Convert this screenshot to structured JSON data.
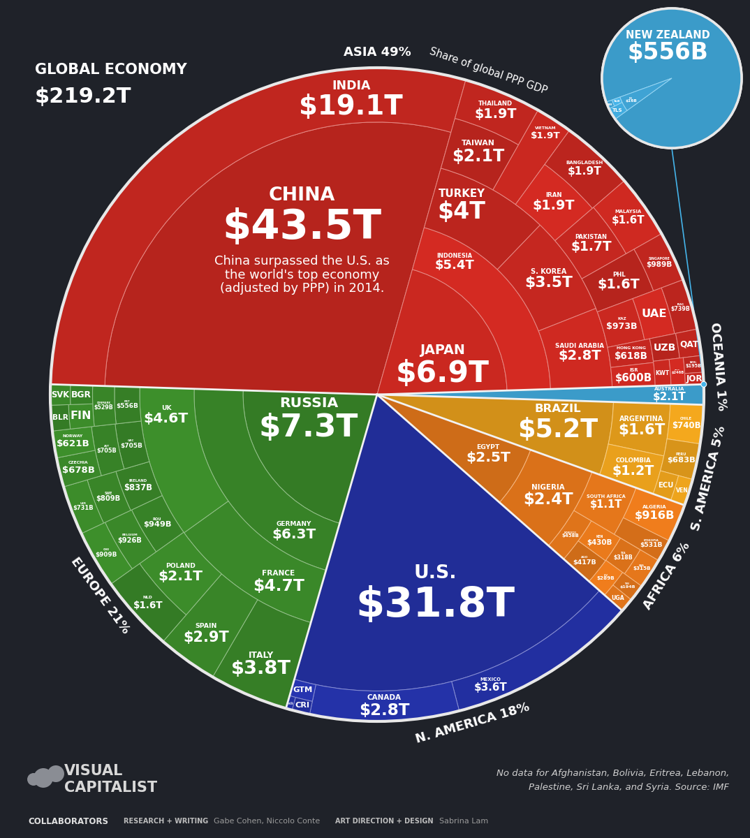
{
  "chart_data": {
    "type": "treemap",
    "title": "GLOBAL ECONOMY",
    "total_label": "$219.2T",
    "subtitle": "Share of global PPP GDP",
    "data_labels": true,
    "regions": [
      {
        "name": "ASIA",
        "share": 49,
        "share_label": "49%",
        "color": "#d42a22",
        "items": [
          {
            "name": "CHINA",
            "value": 43500,
            "value_label": "$43.5T",
            "note": "China surpassed the U.S. as the world's top economy (adjusted by PPP) in 2014."
          },
          {
            "name": "INDIA",
            "value": 19100,
            "value_label": "$19.1T"
          },
          {
            "name": "JAPAN",
            "value": 6900,
            "value_label": "$6.9T"
          },
          {
            "name": "INDONESIA",
            "value": 5400,
            "value_label": "$5.4T"
          },
          {
            "name": "TURKEY",
            "value": 4000,
            "value_label": "$4T"
          },
          {
            "name": "S. KOREA",
            "value": 3500,
            "value_label": "$3.5T"
          },
          {
            "name": "SAUDI ARABIA",
            "value": 2800,
            "value_label": "$2.8T"
          },
          {
            "name": "TAIWAN",
            "value": 2100,
            "value_label": "$2.1T"
          },
          {
            "name": "THAILAND",
            "value": 1900,
            "value_label": "$1.9T"
          },
          {
            "name": "VIETNAM",
            "value": 1900,
            "value_label": "$1.9T"
          },
          {
            "name": "IRAN",
            "value": 1900,
            "value_label": "$1.9T"
          },
          {
            "name": "BANGLADESH",
            "value": 1900,
            "value_label": "$1.9T"
          },
          {
            "name": "PAKISTAN",
            "value": 1700,
            "value_label": "$1.7T"
          },
          {
            "name": "MALAYSIA",
            "value": 1600,
            "value_label": "$1.6T"
          },
          {
            "name": "PHL",
            "value": 1600,
            "value_label": "$1.6T"
          },
          {
            "name": "SINGAPORE",
            "value": 989,
            "value_label": "$989B"
          },
          {
            "name": "KAZ",
            "value": 973,
            "value_label": "$973B"
          },
          {
            "name": "UAE",
            "value": 900
          },
          {
            "name": "IRAQ",
            "value": 739,
            "value_label": "$739B"
          },
          {
            "name": "HONG KONG",
            "value": 618,
            "value_label": "$618B"
          },
          {
            "name": "ISR",
            "value": 600,
            "value_label": "$600B"
          },
          {
            "name": "UZB",
            "value": 410
          },
          {
            "name": "QAT",
            "value": 370
          },
          {
            "name": "KWT",
            "value": 260
          },
          {
            "name": "OMAN",
            "value": 246,
            "value_label": "$246B"
          },
          {
            "name": "NEPAL",
            "value": 195,
            "value_label": "$195B"
          },
          {
            "name": "JOR",
            "value": 140
          }
        ]
      },
      {
        "name": "EUROPE",
        "share": 21,
        "share_label": "21%",
        "color": "#3d8f2b",
        "items": [
          {
            "name": "RUSSIA",
            "value": 7300,
            "value_label": "$7.3T"
          },
          {
            "name": "GERMANY",
            "value": 6300,
            "value_label": "$6.3T"
          },
          {
            "name": "FRANCE",
            "value": 4700,
            "value_label": "$4.7T"
          },
          {
            "name": "UK",
            "value": 4600,
            "value_label": "$4.6T"
          },
          {
            "name": "ITALY",
            "value": 3800,
            "value_label": "$3.8T"
          },
          {
            "name": "SPAIN",
            "value": 2900,
            "value_label": "$2.9T"
          },
          {
            "name": "POLAND",
            "value": 2100,
            "value_label": "$2.1T"
          },
          {
            "name": "NLD",
            "value": 1600,
            "value_label": "$1.6T"
          },
          {
            "name": "ROU",
            "value": 949,
            "value_label": "$949B"
          },
          {
            "name": "BELGIUM",
            "value": 926,
            "value_label": "$926B"
          },
          {
            "name": "CHE",
            "value": 909,
            "value_label": "$909B"
          },
          {
            "name": "IRELAND",
            "value": 837,
            "value_label": "$837B"
          },
          {
            "name": "SWE",
            "value": 809,
            "value_label": "$809B"
          },
          {
            "name": "UKR",
            "value": 731,
            "value_label": "$731B"
          },
          {
            "name": "GRC",
            "value": 705,
            "value_label": "$705B"
          },
          {
            "name": "AUT",
            "value": 705,
            "value_label": "$705B"
          },
          {
            "name": "CZECHIA",
            "value": 678,
            "value_label": "$678B"
          },
          {
            "name": "NORWAY",
            "value": 621,
            "value_label": "$621B"
          },
          {
            "name": "PRT",
            "value": 556,
            "value_label": "$556B"
          },
          {
            "name": "DENMARK",
            "value": 529,
            "value_label": "$529B"
          },
          {
            "name": "FIN",
            "value": 350
          },
          {
            "name": "BLR",
            "value": 280
          },
          {
            "name": "BGR",
            "value": 260
          },
          {
            "name": "SVK",
            "value": 250
          }
        ]
      },
      {
        "name": "N. AMERICA",
        "share": 18,
        "share_label": "18%",
        "color": "#2634b0",
        "items": [
          {
            "name": "U.S.",
            "value": 31800,
            "value_label": "$31.8T"
          },
          {
            "name": "MEXICO",
            "value": 3600,
            "value_label": "$3.6T"
          },
          {
            "name": "CANADA",
            "value": 2800,
            "value_label": "$2.8T"
          },
          {
            "name": "GTM",
            "value": 250
          },
          {
            "name": "CRI",
            "value": 150
          },
          {
            "name": "TTO",
            "value": 53,
            "value_label": "$53B"
          }
        ]
      },
      {
        "name": "AFRICA",
        "share": 6,
        "share_label": "6%",
        "color": "#f07d1c",
        "items": [
          {
            "name": "EGYPT",
            "value": 2500,
            "value_label": "$2.5T"
          },
          {
            "name": "NIGERIA",
            "value": 2400,
            "value_label": "$2.4T"
          },
          {
            "name": "SOUTH AFRICA",
            "value": 1100,
            "value_label": "$1.1T"
          },
          {
            "name": "ALGERIA",
            "value": 916,
            "value_label": "$916B"
          },
          {
            "name": "ETHIOPIA",
            "value": 531,
            "value_label": "$531B"
          },
          {
            "name": "MOROCCO",
            "value": 458,
            "value_label": "$458B"
          },
          {
            "name": "KEN",
            "value": 430,
            "value_label": "$430B"
          },
          {
            "name": "AGO",
            "value": 417,
            "value_label": "$417B"
          },
          {
            "name": "TZA",
            "value": 318,
            "value_label": "$318B"
          },
          {
            "name": "GHA",
            "value": 315,
            "value_label": "$315B"
          },
          {
            "name": "CIV",
            "value": 289,
            "value_label": "$289B"
          },
          {
            "name": "TUN",
            "value": 194,
            "value_label": "$194B"
          },
          {
            "name": "UGA",
            "value": 160
          }
        ]
      },
      {
        "name": "S. AMERICA",
        "share": 5,
        "share_label": "5%",
        "color": "#f4a81d",
        "items": [
          {
            "name": "BRAZIL",
            "value": 5200,
            "value_label": "$5.2T"
          },
          {
            "name": "ARGENTINA",
            "value": 1600,
            "value_label": "$1.6T"
          },
          {
            "name": "COLOMBIA",
            "value": 1200,
            "value_label": "$1.2T"
          },
          {
            "name": "CHILE",
            "value": 740,
            "value_label": "$740B"
          },
          {
            "name": "PERU",
            "value": 683,
            "value_label": "$683B"
          },
          {
            "name": "ECU",
            "value": 280
          },
          {
            "name": "VEN",
            "value": 230
          }
        ]
      },
      {
        "name": "OCEANIA",
        "share": 1,
        "share_label": "1%",
        "color": "#45b4ea",
        "items": [
          {
            "name": "AUSTRALIA",
            "value": 2100,
            "value_label": "$2.1T"
          }
        ],
        "zoom": [
          {
            "name": "NEW ZEALAND",
            "value": 556,
            "value_label": "$556B"
          },
          {
            "name": "FIJI",
            "value": 16,
            "value_label": "$16B"
          },
          {
            "name": "TLS",
            "value": 6
          },
          {
            "name": "SLB",
            "value": 2
          },
          {
            "name": "WSM",
            "value": 1.6
          }
        ]
      }
    ],
    "footnote": [
      "No data for Afghanistan, Bolivia, Eritrea, Lebanon,",
      "Palestine, Sri Lanka, and Syria. Source: IMF"
    ],
    "logo": [
      "VISUAL",
      "CAPITALIST"
    ],
    "credits": {
      "heading": "COLLABORATORS",
      "entries": [
        {
          "role": "RESEARCH + WRITING",
          "names": "Gabe Cohen, Niccolo Conte"
        },
        {
          "role": "ART DIRECTION + DESIGN",
          "names": "Sabrina Lam"
        }
      ]
    }
  }
}
